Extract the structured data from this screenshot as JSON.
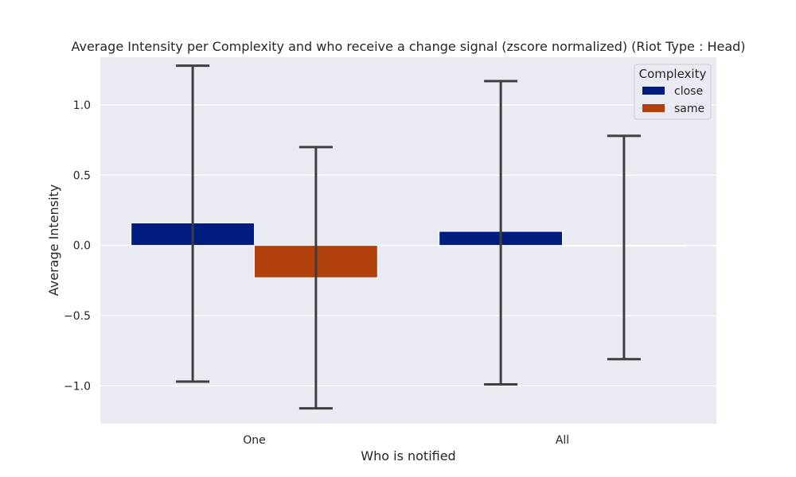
{
  "chart_data": {
    "type": "bar",
    "title": "Average Intensity per Complexity and who receive a change signal (zscore normalized) (Riot Type : Head)",
    "xlabel": "Who is notified",
    "ylabel": "Average Intensity",
    "categories": [
      "One",
      "All"
    ],
    "ylim": [
      -1.27,
      1.34
    ],
    "yticks": [
      -1.0,
      -0.5,
      0.0,
      0.5,
      1.0
    ],
    "ytick_labels": [
      "−1.0",
      "−0.5",
      "0.0",
      "0.5",
      "1.0"
    ],
    "grid": true,
    "legend": {
      "title": "Complexity",
      "placement": "top-right"
    },
    "series": [
      {
        "name": "close",
        "color": "#001c7f",
        "values": [
          0.16,
          0.1
        ],
        "err_low": [
          -0.97,
          -0.99
        ],
        "err_high": [
          1.28,
          1.17
        ]
      },
      {
        "name": "same",
        "color": "#b1400d",
        "values": [
          -0.23,
          -0.005
        ],
        "err_low": [
          -1.16,
          -0.81
        ],
        "err_high": [
          0.7,
          0.78
        ]
      }
    ]
  }
}
